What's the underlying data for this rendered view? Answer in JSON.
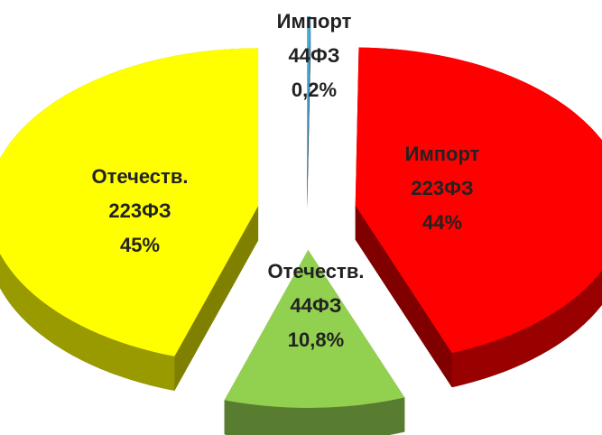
{
  "chart_data": {
    "type": "pie",
    "categories": [
      [
        "Импорт",
        "44ФЗ"
      ],
      [
        "Импорт",
        "223ФЗ"
      ],
      [
        "Отечеств.",
        "44ФЗ"
      ],
      [
        "Отечеств.",
        "223ФЗ"
      ]
    ],
    "values": [
      0.2,
      44,
      10.8,
      45
    ],
    "value_labels": [
      "0,2%",
      "44%",
      "10,8%",
      "45%"
    ],
    "colors": [
      "#4aa8d8",
      "#ff0000",
      "#92d050",
      "#ffff00"
    ]
  }
}
